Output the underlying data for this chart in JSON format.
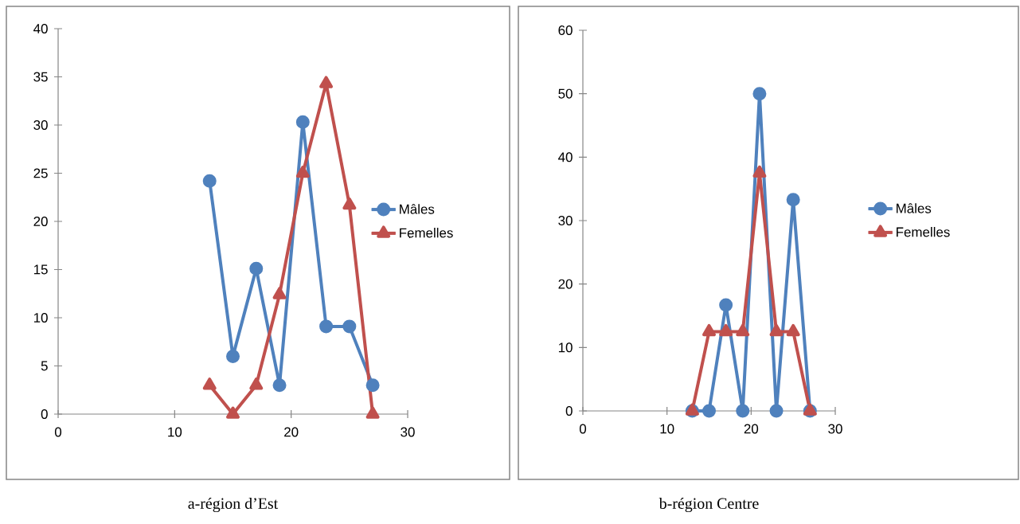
{
  "chart_data": [
    {
      "type": "line",
      "title": "a-région d’Est",
      "x": [
        13,
        15,
        17,
        19,
        21,
        23,
        25,
        27
      ],
      "xlim": [
        0,
        30
      ],
      "xticks": [
        0,
        10,
        20,
        30
      ],
      "ylim": [
        0,
        40
      ],
      "yticks": [
        0,
        5,
        10,
        15,
        20,
        25,
        30,
        35,
        40
      ],
      "legend": "right",
      "series": [
        {
          "name": "Mâles",
          "color": "#4f81bd",
          "marker": "circle",
          "values": [
            24.2,
            6.0,
            15.1,
            3.0,
            30.3,
            9.1,
            9.1,
            3.0
          ]
        },
        {
          "name": "Femelles",
          "color": "#c0504d",
          "marker": "triangle",
          "values": [
            3.0,
            0,
            3.0,
            12.4,
            25.0,
            34.3,
            21.7,
            0
          ]
        }
      ]
    },
    {
      "type": "line",
      "title": "b-région Centre",
      "x": [
        13,
        15,
        17,
        19,
        21,
        23,
        25,
        27
      ],
      "xlim": [
        0,
        30
      ],
      "xticks": [
        0,
        10,
        20,
        30
      ],
      "ylim": [
        0,
        60
      ],
      "yticks": [
        0,
        10,
        20,
        30,
        40,
        50,
        60
      ],
      "legend": "right",
      "series": [
        {
          "name": "Mâles",
          "color": "#4f81bd",
          "marker": "circle",
          "values": [
            0,
            0,
            16.7,
            0,
            50.0,
            0,
            33.3,
            0
          ]
        },
        {
          "name": "Femelles",
          "color": "#c0504d",
          "marker": "triangle",
          "values": [
            0,
            12.5,
            12.5,
            12.5,
            37.5,
            12.5,
            12.5,
            0
          ]
        }
      ]
    }
  ]
}
